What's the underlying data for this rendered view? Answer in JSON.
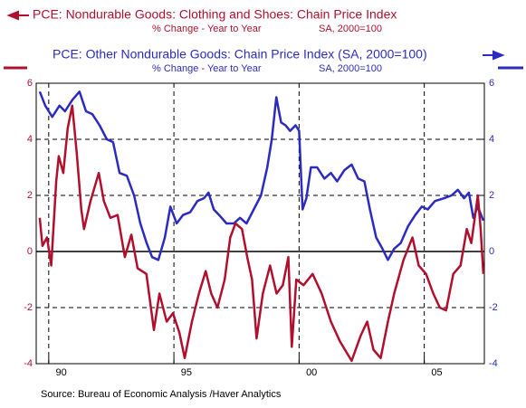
{
  "chart_data": {
    "type": "line",
    "source": "Source:  Bureau of Economic Analysis /Haver Analytics",
    "xlim": [
      1989.5,
      2007.4
    ],
    "xticks": [
      {
        "value": 1990,
        "label": "90"
      },
      {
        "value": 1995,
        "label": "95"
      },
      {
        "value": 2000,
        "label": "00"
      },
      {
        "value": 2005,
        "label": "05"
      }
    ],
    "ylim": [
      -4,
      6
    ],
    "yticks": [
      -4,
      -2,
      0,
      2,
      4,
      6
    ],
    "y2lim": [
      -4,
      6
    ],
    "y2ticks": [
      -4,
      -2,
      0,
      2,
      4,
      6
    ],
    "grid": true,
    "series": [
      {
        "name": "PCE: Nondurable Goods: Clothing and Shoes: Chain Price Index",
        "units": "% Change - Year to Year",
        "note": "SA, 2000=100",
        "color": "#b0102e",
        "axis": "y",
        "x": [
          1989.64,
          1989.75,
          1989.93,
          1990.1,
          1990.3,
          1990.4,
          1990.58,
          1990.76,
          1990.94,
          1991.12,
          1991.3,
          1991.41,
          1991.67,
          1992.0,
          1992.2,
          1992.46,
          1992.75,
          1993.04,
          1993.3,
          1993.55,
          1993.9,
          1994.2,
          1994.42,
          1994.71,
          1994.96,
          1995.22,
          1995.43,
          1995.72,
          1996.0,
          1996.27,
          1996.49,
          1996.74,
          1997.03,
          1997.25,
          1997.46,
          1997.72,
          1997.93,
          1998.12,
          1998.3,
          1998.55,
          1998.84,
          1999.1,
          1999.35,
          1999.57,
          1999.71,
          1999.89,
          2000.18,
          2000.54,
          2000.9,
          2001.27,
          2001.63,
          2002.1,
          2002.46,
          2002.72,
          2002.97,
          2003.26,
          2003.55,
          2003.8,
          2004.17,
          2004.53,
          2004.78,
          2005.07,
          2005.36,
          2005.62,
          2005.87,
          2006.16,
          2006.45,
          2006.7,
          2006.88,
          2007.14,
          2007.25,
          2007.36
        ],
        "values": [
          1.2,
          0.2,
          0.5,
          -0.5,
          2.5,
          3.4,
          2.8,
          4.4,
          5.2,
          3.5,
          1.5,
          0.8,
          1.8,
          2.8,
          1.8,
          1.2,
          1.3,
          -0.2,
          0.6,
          -0.6,
          -0.8,
          -2.8,
          -1.5,
          -2.5,
          -2.2,
          -2.9,
          -3.8,
          -2.5,
          -1.5,
          -0.7,
          -1.5,
          -2.0,
          -1.0,
          0.5,
          1.0,
          0.8,
          -0.2,
          -1.0,
          -3.1,
          -1.5,
          -0.5,
          -1.5,
          -1.2,
          -0.2,
          -3.4,
          -1.0,
          -1.2,
          -0.8,
          -1.5,
          -2.5,
          -3.2,
          -3.9,
          -3.0,
          -2.5,
          -3.5,
          -3.8,
          -2.5,
          -1.5,
          -0.3,
          0.5,
          -0.5,
          -0.8,
          -1.5,
          -2.0,
          -2.1,
          -0.8,
          -0.5,
          0.8,
          0.3,
          2.0,
          0.8,
          -0.8
        ]
      },
      {
        "name": "PCE: Other Nondurable Goods: Chain Price Index (SA, 2000=100)",
        "units": "% Change - Year to Year",
        "note": "SA, 2000=100",
        "color": "#2b2bc0",
        "axis": "y2",
        "x": [
          1989.64,
          1989.86,
          1990.14,
          1990.43,
          1990.65,
          1990.94,
          1991.23,
          1991.49,
          1991.74,
          1992.03,
          1992.32,
          1992.57,
          1992.83,
          1993.12,
          1993.41,
          1993.66,
          1993.91,
          1994.13,
          1994.38,
          1994.64,
          1994.86,
          1995.11,
          1995.36,
          1995.65,
          1995.94,
          1996.2,
          1996.38,
          1996.59,
          1996.81,
          1997.1,
          1997.39,
          1997.64,
          1997.9,
          1998.19,
          1998.48,
          1998.73,
          1998.91,
          1999.09,
          1999.28,
          1999.46,
          1999.64,
          1999.86,
          2000.0,
          2000.14,
          2000.29,
          2000.47,
          2000.72,
          2001.01,
          2001.27,
          2001.52,
          2001.81,
          2002.1,
          2002.36,
          2002.61,
          2002.83,
          2003.08,
          2003.33,
          2003.55,
          2003.8,
          2004.06,
          2004.35,
          2004.64,
          2004.9,
          2005.14,
          2005.43,
          2005.8,
          2006.09,
          2006.34,
          2006.59,
          2006.78,
          2006.96,
          2007.14,
          2007.36
        ],
        "values": [
          5.7,
          5.2,
          4.8,
          5.2,
          5.0,
          5.4,
          5.7,
          5.0,
          4.9,
          4.5,
          4.0,
          3.9,
          2.8,
          2.7,
          2.0,
          1.0,
          0.3,
          -0.2,
          -0.3,
          0.5,
          1.6,
          1.0,
          1.3,
          1.4,
          1.8,
          1.9,
          2.1,
          1.5,
          1.3,
          1.0,
          1.0,
          1.2,
          1.0,
          1.5,
          2.0,
          3.0,
          4.0,
          5.5,
          4.6,
          4.5,
          4.3,
          4.5,
          4.3,
          1.5,
          1.9,
          3.0,
          3.0,
          2.6,
          2.8,
          2.5,
          2.9,
          3.1,
          2.6,
          2.5,
          1.5,
          0.5,
          0.1,
          -0.3,
          0.1,
          0.3,
          0.9,
          1.3,
          1.6,
          1.5,
          1.8,
          1.9,
          2.0,
          2.2,
          1.9,
          2.1,
          1.2,
          1.6,
          1.1
        ]
      }
    ]
  }
}
